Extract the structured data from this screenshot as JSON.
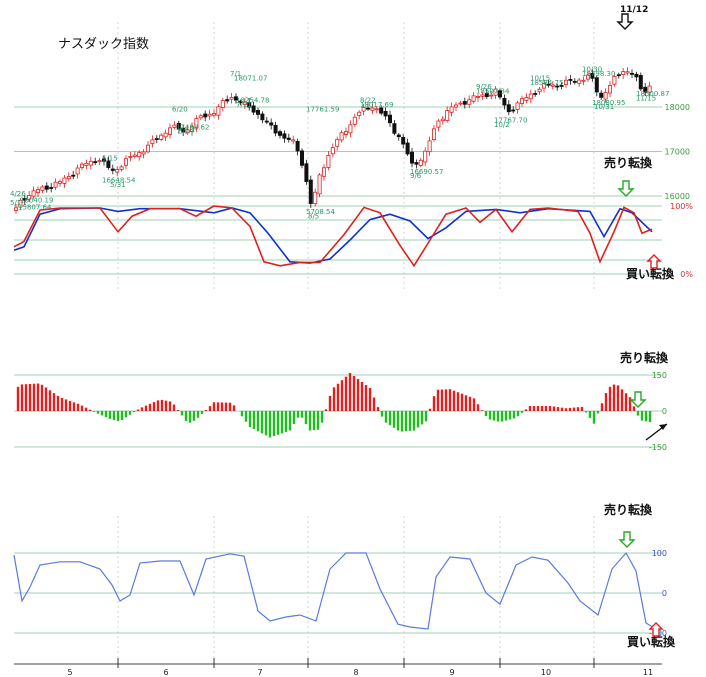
{
  "colors": {
    "up": "#e02020",
    "down": "#111111",
    "ann": "#2a9a6a",
    "grid": "#9fd0b4",
    "axis_text_green": "#3a9a3a",
    "pct_red": "#d03030",
    "pos_bar": "#e02020",
    "neg_bar": "#22bb22",
    "osc_blue": "#5a7ae0",
    "blue_line": "#1030d0",
    "red_line": "#e02020",
    "month_line": "#666666",
    "arrow_green": "#22aa22",
    "arrow_red": "#e02020"
  },
  "chart_data": [
    {
      "type": "candlestick",
      "title": "ナスダック指数",
      "ylim": [
        15300,
        18900
      ],
      "y_ticks": [
        "16000",
        "17000",
        "18000"
      ],
      "annotations": [
        {
          "t": "15807.64",
          "v": 15700
        },
        {
          "t": "4/26",
          "v": 16000
        },
        {
          "t": "16040.19",
          "v": 15850
        },
        {
          "t": "5/1",
          "v": 15800
        },
        {
          "t": "5/15",
          "v": 16800
        },
        {
          "t": "16648.54",
          "v": 16300
        },
        {
          "t": "5/31",
          "v": 16200
        },
        {
          "t": "6/20",
          "v": 17900
        },
        {
          "t": "17498.62",
          "v": 17500
        },
        {
          "t": "6/24",
          "v": 17400
        },
        {
          "t": "7/1",
          "v": 18700
        },
        {
          "t": "18071.07",
          "v": 18600
        },
        {
          "t": "18254.78",
          "v": 18100
        },
        {
          "t": "7/11",
          "v": 18000
        },
        {
          "t": "17761.59",
          "v": 17900
        },
        {
          "t": "5708.54",
          "v": 15600
        },
        {
          "t": "8/5",
          "v": 15500
        },
        {
          "t": "8/22",
          "v": 18100
        },
        {
          "t": "18017.69",
          "v": 18000
        },
        {
          "t": "16690.57",
          "v": 16500
        },
        {
          "t": "9/6",
          "v": 16400
        },
        {
          "t": "9/26",
          "v": 18400
        },
        {
          "t": "18507.34",
          "v": 18300
        },
        {
          "t": "17767.70",
          "v": 17650
        },
        {
          "t": "10/2",
          "v": 17550
        },
        {
          "t": "10/15",
          "v": 18600
        },
        {
          "t": "18584.75",
          "v": 18500
        },
        {
          "t": "10/30",
          "v": 18800
        },
        {
          "t": "18798.30",
          "v": 18700
        },
        {
          "t": "18080.95",
          "v": 18050
        },
        {
          "t": "10/31",
          "v": 17950
        },
        {
          "t": "18500.87",
          "v": 18250
        },
        {
          "t": "11/15",
          "v": 18150
        }
      ],
      "peak_label": "11/12"
    },
    {
      "type": "line",
      "series": [
        {
          "color": "#1030d0"
        },
        {
          "color": "#e02020"
        }
      ],
      "y_tick_labels": [
        "100%",
        "0%"
      ],
      "ylim": [
        0,
        100
      ],
      "labels": {
        "sell": "売り転換",
        "buy": "買い転換"
      }
    },
    {
      "type": "bar",
      "ylim": [
        -150,
        150
      ],
      "y_ticks": [
        "150",
        "0",
        "-150"
      ],
      "label": "売り転換"
    },
    {
      "type": "line",
      "ylim": [
        -100,
        100
      ],
      "y_ticks": [
        "100",
        "0",
        "-100"
      ],
      "labels": {
        "sell": "売り転換",
        "buy": "買い転換"
      }
    }
  ],
  "x_axis": {
    "month_labels": [
      "5",
      "6",
      "7",
      "8",
      "9",
      "10",
      "11"
    ]
  }
}
